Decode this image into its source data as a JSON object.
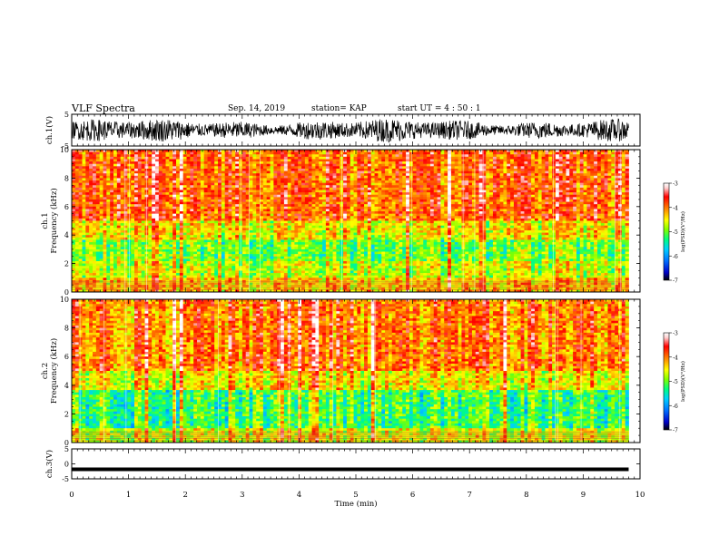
{
  "header": {
    "title": "VLF Spectra",
    "date": "Sep. 14, 2019",
    "station": "station= KAP",
    "start": "start  UT =   4 : 50 : 1"
  },
  "chart_data": [
    {
      "type": "line",
      "panel": "ch1-waveform",
      "ylabel": "ch.1(V)",
      "yticks": [
        "5",
        "-5"
      ],
      "ylim": [
        -5,
        5
      ],
      "xlim": [
        0,
        10
      ],
      "style": "dense noisy black waveform spanning about -4 to 4 V"
    },
    {
      "type": "heatmap",
      "panel": "ch1-spectrogram",
      "ylabel": "ch.1 Frequency (kHz)",
      "yticks": [
        "0",
        "2",
        "4",
        "6",
        "8",
        "10"
      ],
      "ylim": [
        0,
        10
      ],
      "xlim": [
        0,
        9.8
      ],
      "colorbar": {
        "label": "log(PSD)(V²/Hz)",
        "ticks": [
          "-3",
          "-4",
          "-5",
          "-6",
          "-7"
        ],
        "range": [
          -7,
          -3
        ]
      }
    },
    {
      "type": "heatmap",
      "panel": "ch2-spectrogram",
      "ylabel": "ch.2 Frequency (kHz)",
      "yticks": [
        "0",
        "2",
        "4",
        "6",
        "8",
        "10"
      ],
      "ylim": [
        0,
        10
      ],
      "xlim": [
        0,
        9.8
      ],
      "colorbar": {
        "label": "log(PSD)(V²/Hz)",
        "ticks": [
          "-3",
          "-4",
          "-5",
          "-6",
          "-7"
        ],
        "range": [
          -7,
          -3
        ]
      }
    },
    {
      "type": "line",
      "panel": "ch3-waveform",
      "ylabel": "ch.3(V)",
      "yticks": [
        "5",
        "0",
        "-5"
      ],
      "ylim": [
        -5,
        5
      ],
      "xlim": [
        0,
        10
      ],
      "values_constant": -1.8,
      "style": "flat thick black line"
    }
  ],
  "xaxis": {
    "label": "Time  (min)",
    "ticks": [
      "0",
      "1",
      "2",
      "3",
      "4",
      "5",
      "6",
      "7",
      "8",
      "9",
      "10"
    ]
  },
  "colors": {
    "scale": [
      "#000000",
      "#0000c8",
      "#0070ff",
      "#00d0ff",
      "#00ff80",
      "#80ff00",
      "#ffff00",
      "#ff8000",
      "#ff0000",
      "#ffd0d0",
      "#ffffff"
    ]
  }
}
